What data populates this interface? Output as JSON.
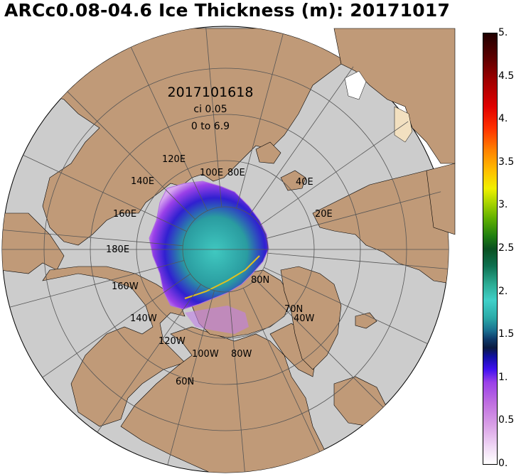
{
  "title": "ARCc0.08-04.6 Ice Thickness (m): 20171017",
  "info": {
    "datetime": "2017101618",
    "ci": "ci 0.05",
    "range": "0 to 6.9"
  },
  "map_labels": {
    "e120": "120E",
    "e140": "140E",
    "e160": "160E",
    "e100": "100E",
    "e80": "80E",
    "e40": "40E",
    "e20": "20E",
    "e180": "180E",
    "w160": "160W",
    "w140": "140W",
    "w120": "120W",
    "w100": "100W",
    "w80": "80W",
    "w40": "40W",
    "n80": "80N",
    "n70": "70N",
    "n60": "60N"
  },
  "legend": {
    "ticks": [
      "5.",
      "4.5",
      "4.",
      "3.5",
      "3.",
      "2.5",
      "2.",
      "1.5",
      "1.",
      "0.5",
      "0."
    ],
    "min": 0,
    "max": 5
  },
  "colors": {
    "ocean": "#cccccc",
    "land": "#c09a78",
    "grid": "#555555"
  }
}
